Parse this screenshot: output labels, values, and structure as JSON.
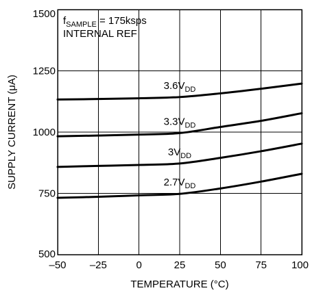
{
  "chart_data": {
    "type": "line",
    "xlabel": "TEMPERATURE (°C)",
    "ylabel": "SUPPLY CURRENT (μA)",
    "xlim": [
      -50,
      100
    ],
    "ylim": [
      500,
      1500
    ],
    "xticks": [
      -50,
      -25,
      0,
      25,
      50,
      75,
      100
    ],
    "yticks": [
      500,
      750,
      1000,
      1250,
      1500
    ],
    "x_tick_labels": [
      "–50",
      "–25",
      "0",
      "25",
      "50",
      "75",
      "100"
    ],
    "y_tick_labels": [
      "500",
      "750",
      "1000",
      "1250",
      "1500"
    ],
    "grid": true,
    "annotation": {
      "line1_prefix": "f",
      "line1_subscript": "SAMPLE",
      "line1_suffix": " = 175ksps",
      "line2": "INTERNAL REF"
    },
    "series": [
      {
        "name": "3.6V",
        "name_subscript": "DD",
        "points": [
          [
            -50,
            1133
          ],
          [
            -25,
            1135
          ],
          [
            0,
            1138
          ],
          [
            25,
            1143
          ],
          [
            50,
            1158
          ],
          [
            75,
            1177
          ],
          [
            100,
            1198
          ]
        ]
      },
      {
        "name": "3.3V",
        "name_subscript": "DD",
        "points": [
          [
            -50,
            983
          ],
          [
            -25,
            986
          ],
          [
            0,
            990
          ],
          [
            25,
            996
          ],
          [
            50,
            1021
          ],
          [
            75,
            1046
          ],
          [
            100,
            1077
          ]
        ]
      },
      {
        "name": "3V",
        "name_subscript": "DD",
        "points": [
          [
            -50,
            858
          ],
          [
            -25,
            862
          ],
          [
            0,
            866
          ],
          [
            25,
            872
          ],
          [
            50,
            895
          ],
          [
            75,
            922
          ],
          [
            100,
            953
          ]
        ]
      },
      {
        "name": "2.7V",
        "name_subscript": "DD",
        "points": [
          [
            -50,
            732
          ],
          [
            -25,
            736
          ],
          [
            0,
            742
          ],
          [
            25,
            748
          ],
          [
            50,
            770
          ],
          [
            75,
            798
          ],
          [
            100,
            830
          ]
        ]
      }
    ]
  }
}
